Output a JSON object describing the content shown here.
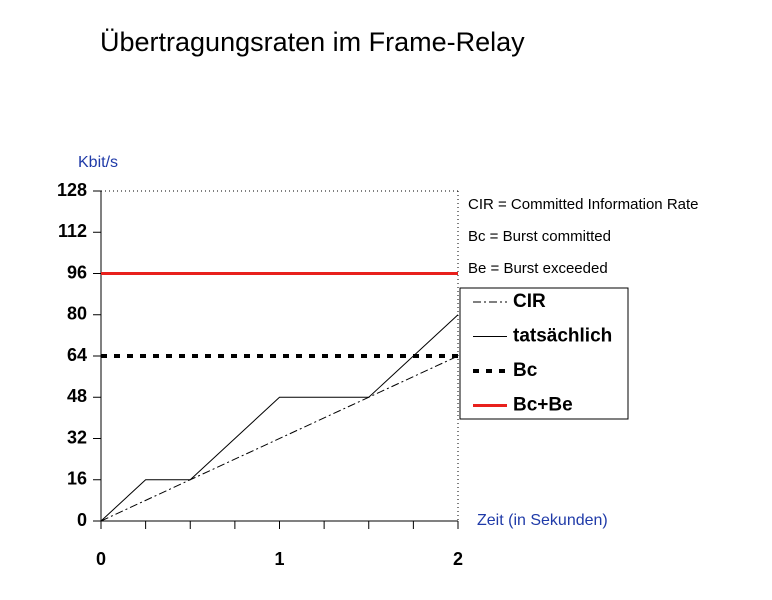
{
  "chart_data": {
    "type": "line",
    "title": "Übertragungsraten im Frame-Relay",
    "y_label": "Kbit/s",
    "x_label": "Zeit (in Sekunden)",
    "annotations": [
      "CIR = Committed Information Rate",
      "Bc   = Burst committed",
      "Be  = Burst exceeded"
    ],
    "xlim": [
      0,
      2
    ],
    "ylim": [
      0,
      128
    ],
    "xticks": [
      0,
      1,
      2
    ],
    "xticks_minor": [
      0.25,
      0.5,
      0.75,
      1.25,
      1.5,
      1.75
    ],
    "yticks": [
      0,
      16,
      32,
      48,
      64,
      80,
      96,
      112,
      128
    ],
    "series": [
      {
        "name": "CIR",
        "color": "#000000",
        "dash": "8 3 2 3",
        "width": 1,
        "x": [
          0,
          2
        ],
        "values": [
          0,
          64
        ]
      },
      {
        "name": "tatsächlich",
        "color": "#000000",
        "dash": "none",
        "width": 1,
        "x": [
          0,
          0.25,
          0.5,
          1,
          1.5,
          2
        ],
        "values": [
          0,
          16,
          16,
          48,
          48,
          80
        ]
      },
      {
        "name": "Bc",
        "color": "#000000",
        "dash": "6 7",
        "width": 4,
        "x": [
          0,
          2
        ],
        "values": [
          64,
          64
        ]
      },
      {
        "name": "Bc+Be",
        "color": "#e8201c",
        "dash": "none",
        "width": 3,
        "x": [
          0,
          2
        ],
        "values": [
          96,
          96
        ]
      }
    ]
  }
}
